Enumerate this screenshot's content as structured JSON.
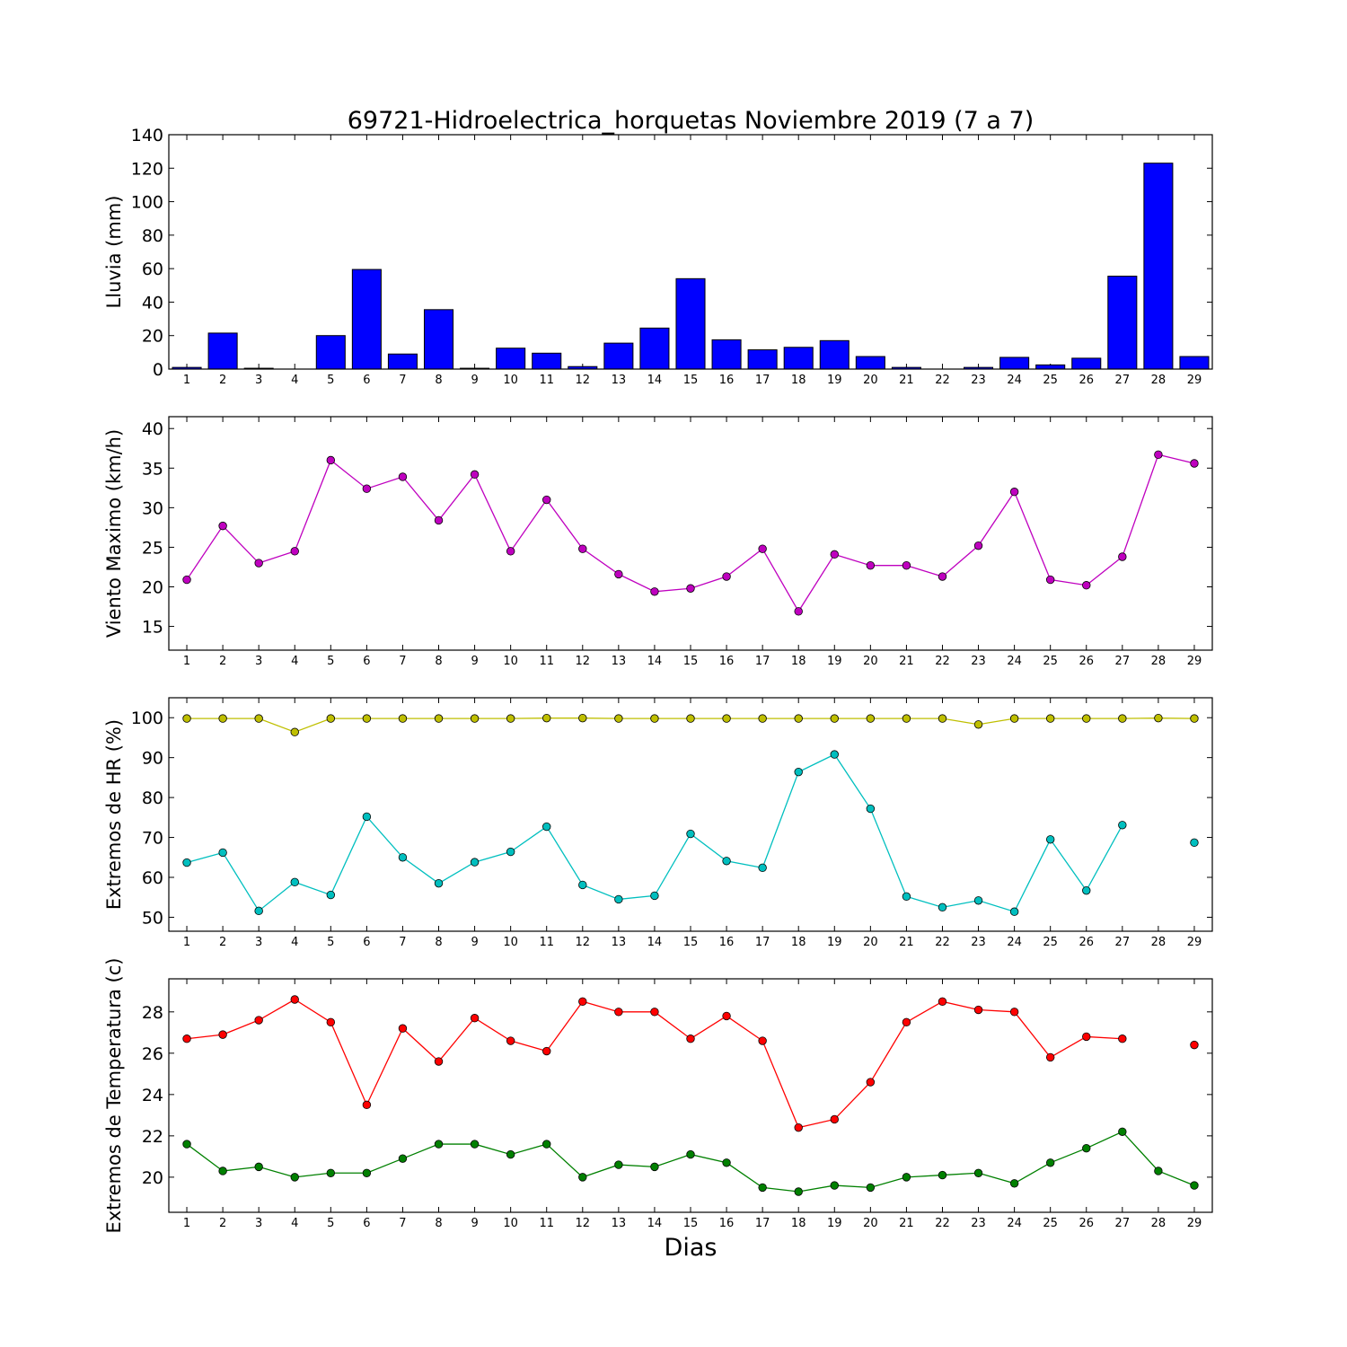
{
  "figure": {
    "title": "69721-Hidroelectrica_horquetas Noviembre 2019  (7 a 7)",
    "xlabel": "Dias"
  },
  "chart_data": [
    {
      "type": "bar",
      "ylabel": "Lluvia (mm)",
      "ylim": [
        0,
        140
      ],
      "yticks": [
        0,
        20,
        40,
        60,
        80,
        100,
        120,
        140
      ],
      "categories": [
        "1",
        "2",
        "3",
        "4",
        "5",
        "6",
        "7",
        "8",
        "9",
        "10",
        "11",
        "12",
        "13",
        "14",
        "15",
        "16",
        "17",
        "18",
        "19",
        "20",
        "21",
        "22",
        "23",
        "24",
        "25",
        "26",
        "27",
        "28",
        "29"
      ],
      "colors": {
        "bar": "#0000ff"
      },
      "series": [
        {
          "values": [
            1,
            21.5,
            0.5,
            0,
            20,
            59.5,
            9,
            35.5,
            0.5,
            12.5,
            9.5,
            1.5,
            15.5,
            24.5,
            54,
            17.5,
            11.5,
            13,
            17,
            7.5,
            1,
            0,
            1,
            7,
            2.5,
            6.5,
            55.5,
            123,
            7.5
          ]
        }
      ]
    },
    {
      "type": "line",
      "ylabel": "Viento Maximo (km/h)",
      "ylim": [
        12,
        41.5
      ],
      "yticks": [
        15,
        20,
        25,
        30,
        35,
        40
      ],
      "categories": [
        "1",
        "2",
        "3",
        "4",
        "5",
        "6",
        "7",
        "8",
        "9",
        "10",
        "11",
        "12",
        "13",
        "14",
        "15",
        "16",
        "17",
        "18",
        "19",
        "20",
        "21",
        "22",
        "23",
        "24",
        "25",
        "26",
        "27",
        "28",
        "29"
      ],
      "colors": {
        "line": "#bf00bf"
      },
      "series": [
        {
          "values": [
            20.9,
            27.7,
            23.0,
            24.5,
            36.0,
            32.4,
            33.9,
            28.4,
            34.2,
            24.5,
            31.0,
            24.8,
            21.6,
            19.4,
            19.8,
            21.3,
            24.8,
            16.9,
            24.1,
            22.7,
            22.7,
            21.3,
            25.2,
            32.0,
            20.9,
            20.2,
            23.8,
            36.7,
            35.6
          ]
        }
      ]
    },
    {
      "type": "line",
      "ylabel": "Extremos de HR (%)",
      "ylim": [
        46.5,
        105
      ],
      "yticks": [
        50,
        60,
        70,
        80,
        90,
        100
      ],
      "categories": [
        "1",
        "2",
        "3",
        "4",
        "5",
        "6",
        "7",
        "8",
        "9",
        "10",
        "11",
        "12",
        "13",
        "14",
        "15",
        "16",
        "17",
        "18",
        "19",
        "20",
        "21",
        "22",
        "23",
        "24",
        "25",
        "26",
        "27",
        "28",
        "29"
      ],
      "colors": {
        "max": "#bfbf00",
        "min": "#00bfbf"
      },
      "series": [
        {
          "values": [
            99.8,
            99.8,
            99.8,
            96.4,
            99.8,
            99.8,
            99.8,
            99.8,
            99.8,
            99.8,
            99.9,
            99.9,
            99.8,
            99.8,
            99.8,
            99.8,
            99.8,
            99.8,
            99.8,
            99.8,
            99.8,
            99.8,
            98.3,
            99.8,
            99.8,
            99.8,
            99.8,
            99.9,
            99.8
          ]
        },
        {
          "values": [
            63.7,
            66.2,
            51.6,
            58.8,
            55.6,
            75.2,
            65.0,
            58.5,
            63.8,
            66.4,
            72.7,
            58.1,
            54.5,
            55.4,
            70.9,
            64.1,
            62.4,
            86.4,
            90.8,
            77.2,
            55.2,
            52.5,
            54.2,
            51.4,
            69.5,
            56.7,
            73.1,
            null,
            68.7
          ]
        }
      ]
    },
    {
      "type": "line",
      "ylabel": "Extremos de Temperatura (c)",
      "ylim": [
        18.3,
        29.6
      ],
      "yticks": [
        20,
        22,
        24,
        26,
        28
      ],
      "categories": [
        "1",
        "2",
        "3",
        "4",
        "5",
        "6",
        "7",
        "8",
        "9",
        "10",
        "11",
        "12",
        "13",
        "14",
        "15",
        "16",
        "17",
        "18",
        "19",
        "20",
        "21",
        "22",
        "23",
        "24",
        "25",
        "26",
        "27",
        "28",
        "29"
      ],
      "colors": {
        "max": "#ff0000",
        "min": "#008000"
      },
      "series": [
        {
          "values": [
            26.7,
            26.9,
            27.6,
            28.6,
            27.5,
            23.5,
            27.2,
            25.6,
            27.7,
            26.6,
            26.1,
            28.5,
            28.0,
            28.0,
            26.7,
            27.8,
            26.6,
            22.4,
            22.8,
            24.6,
            27.5,
            28.5,
            28.1,
            28.0,
            25.8,
            26.8,
            26.7,
            null,
            26.4
          ]
        },
        {
          "values": [
            21.6,
            20.3,
            20.5,
            20.0,
            20.2,
            20.2,
            20.9,
            21.6,
            21.6,
            21.1,
            21.6,
            20.0,
            20.6,
            20.5,
            21.1,
            20.7,
            19.5,
            19.3,
            19.6,
            19.5,
            20.0,
            20.1,
            20.2,
            19.7,
            20.7,
            21.4,
            22.2,
            20.3,
            19.6
          ]
        }
      ]
    }
  ]
}
